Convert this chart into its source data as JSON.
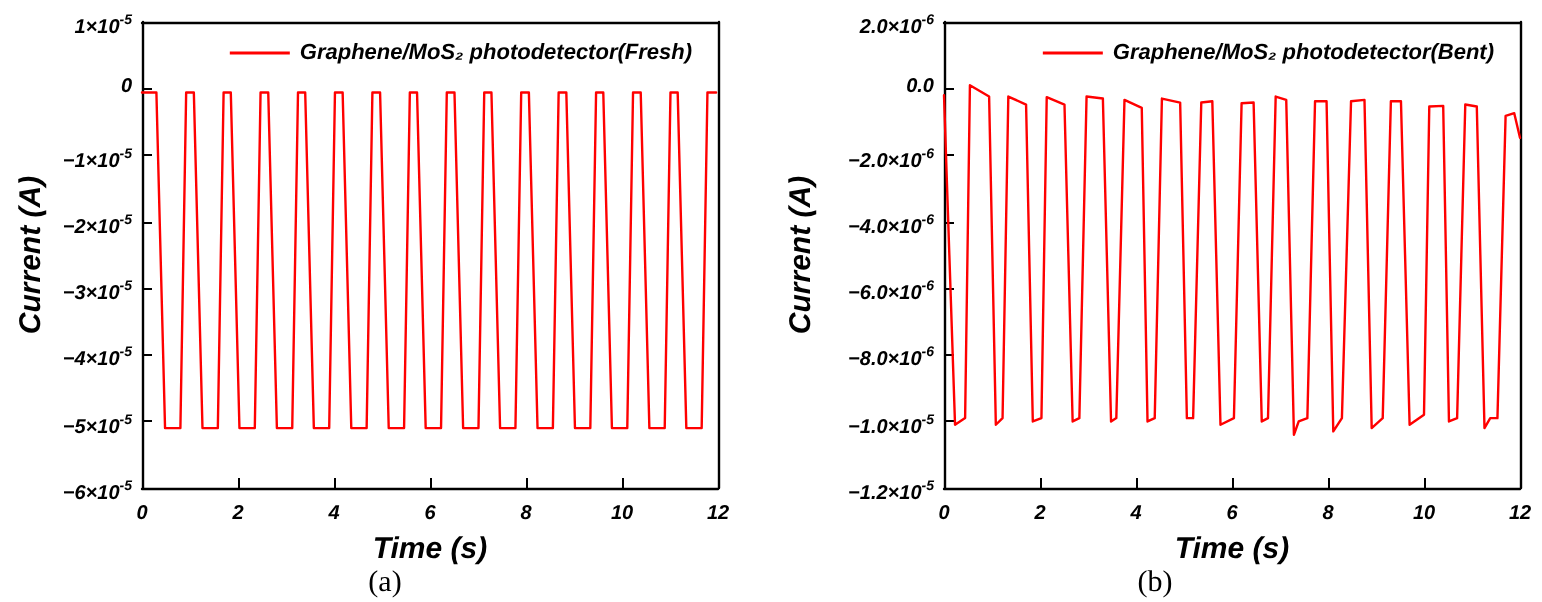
{
  "chart_data": [
    {
      "type": "line",
      "xlabel": "Time (s)",
      "ylabel": "Current (A)",
      "xlim": [
        0,
        12
      ],
      "xticks": [
        0,
        2,
        4,
        6,
        8,
        10,
        12
      ],
      "ylim": [
        -6e-05,
        1e-05
      ],
      "yticks": [
        {
          "value": -6e-05,
          "label": "−6×10$^{-5}$"
        },
        {
          "value": -5e-05,
          "label": "−5×10$^{-5}$"
        },
        {
          "value": -4e-05,
          "label": "−4×10$^{-5}$"
        },
        {
          "value": -3e-05,
          "label": "−3×10$^{-5}$"
        },
        {
          "value": -2e-05,
          "label": "−2×10$^{-5}$"
        },
        {
          "value": -1e-05,
          "label": "−1×10$^{-5}$"
        },
        0,
        {
          "value": 1e-05,
          "label": "1×10$^{-5}$"
        }
      ],
      "grid": false,
      "legend": "top right",
      "line_style": "solid",
      "marker": "none",
      "annotations": [
        "(a)"
      ],
      "series": [
        {
          "name": "Graphene/MoS₂ photodetector(Fresh)",
          "color": "#ff0000",
          "x": [
            0,
            0.3,
            0.48,
            0.8,
            0.92,
            1.08,
            1.26,
            1.58,
            1.7,
            1.85,
            2.03,
            2.35,
            2.47,
            2.63,
            2.81,
            3.13,
            3.25,
            3.4,
            3.58,
            3.9,
            4.02,
            4.18,
            4.36,
            4.68,
            4.8,
            4.96,
            5.14,
            5.46,
            5.58,
            5.73,
            5.91,
            6.23,
            6.35,
            6.51,
            6.69,
            7.01,
            7.13,
            7.28,
            7.46,
            7.78,
            7.9,
            8.06,
            8.24,
            8.56,
            8.68,
            8.84,
            9.02,
            9.34,
            9.46,
            9.61,
            9.79,
            10.11,
            10.23,
            10.39,
            10.57,
            10.89,
            11.01,
            11.16,
            11.34,
            11.66,
            11.78,
            11.96
          ],
          "values": [
            -6e-07,
            -6e-07,
            -5.1e-05,
            -5.1e-05,
            -6e-07,
            -6e-07,
            -5.1e-05,
            -5.1e-05,
            -6e-07,
            -6e-07,
            -5.1e-05,
            -5.1e-05,
            -6e-07,
            -6e-07,
            -5.1e-05,
            -5.1e-05,
            -6e-07,
            -6e-07,
            -5.1e-05,
            -5.1e-05,
            -6e-07,
            -6e-07,
            -5.1e-05,
            -5.1e-05,
            -6e-07,
            -6e-07,
            -5.1e-05,
            -5.1e-05,
            -6e-07,
            -6e-07,
            -5.1e-05,
            -5.1e-05,
            -6e-07,
            -6e-07,
            -5.1e-05,
            -5.1e-05,
            -6e-07,
            -6e-07,
            -5.1e-05,
            -5.1e-05,
            -6e-07,
            -6e-07,
            -5.1e-05,
            -5.1e-05,
            -6e-07,
            -6e-07,
            -5.1e-05,
            -5.1e-05,
            -6e-07,
            -6e-07,
            -5.1e-05,
            -5.1e-05,
            -6e-07,
            -6e-07,
            -5.1e-05,
            -5.1e-05,
            -6e-07,
            -6e-07,
            -5.1e-05,
            -5.1e-05,
            -6e-07,
            -6e-07
          ]
        }
      ]
    },
    {
      "type": "line",
      "xlabel": "Time (s)",
      "ylabel": "Current (A)",
      "xlim": [
        0,
        12
      ],
      "xticks": [
        0,
        2,
        4,
        6,
        8,
        10,
        12
      ],
      "ylim": [
        -1.2e-05,
        2e-06
      ],
      "yticks": [
        {
          "value": -1.2e-05,
          "label": "−1.2×10$^{-5}$"
        },
        {
          "value": -1e-05,
          "label": "−1.0×10$^{-5}$"
        },
        {
          "value": -8e-06,
          "label": "−8.0×10$^{-6}$"
        },
        {
          "value": -6e-06,
          "label": "−6.0×10$^{-6}$"
        },
        {
          "value": -4e-06,
          "label": "−4.0×10$^{-6}$"
        },
        {
          "value": -2e-06,
          "label": "−2.0×10$^{-6}$"
        },
        {
          "value": 0,
          "label": "0.0"
        },
        {
          "value": 2e-06,
          "label": "2.0×10$^{-6}$"
        }
      ],
      "grid": false,
      "legend": "top right",
      "line_style": "solid",
      "marker": "none",
      "annotations": [
        "(b)"
      ],
      "series": [
        {
          "name": "Graphene/MoS₂ photodetector(Bent)",
          "color": "#ff0000",
          "x": [
            0,
            0.23,
            0.44,
            0.54,
            0.94,
            1.08,
            1.22,
            1.34,
            1.71,
            1.85,
            2.03,
            2.14,
            2.51,
            2.68,
            2.82,
            2.97,
            3.31,
            3.48,
            3.59,
            3.76,
            4.12,
            4.24,
            4.39,
            4.54,
            4.92,
            5.06,
            5.19,
            5.36,
            5.59,
            5.76,
            6.04,
            6.2,
            6.45,
            6.62,
            6.75,
            6.91,
            7.13,
            7.29,
            7.39,
            7.57,
            7.73,
            7.97,
            8.11,
            8.29,
            8.48,
            8.76,
            8.91,
            9.14,
            9.31,
            9.52,
            9.7,
            10.0,
            10.11,
            10.4,
            10.52,
            10.69,
            10.86,
            11.1,
            11.26,
            11.38,
            11.53,
            11.7,
            11.88,
            12
          ],
          "values": [
            -2e-07,
            -1.01e-05,
            -9.9e-06,
            1e-07,
            -2.4e-07,
            -1.01e-05,
            -9.9e-06,
            -2.4e-07,
            -4.8e-07,
            -1e-05,
            -9.9e-06,
            -2.6e-07,
            -4.8e-07,
            -1e-05,
            -9.9e-06,
            -2.4e-07,
            -3e-07,
            -1e-05,
            -9.9e-06,
            -3.4e-07,
            -5.8e-07,
            -1e-05,
            -9.9e-06,
            -3e-07,
            -4.2e-07,
            -9.9e-06,
            -9.9e-06,
            -4.2e-07,
            -3.8e-07,
            -1.01e-05,
            -9.9e-06,
            -4.4e-07,
            -4.2e-07,
            -1e-05,
            -9.9e-06,
            -2.4e-07,
            -3.4e-07,
            -1.04e-05,
            -1e-05,
            -9.9e-06,
            -3.8e-07,
            -3.8e-07,
            -1.03e-05,
            -9.9e-06,
            -3.8e-07,
            -3.4e-07,
            -1.02e-05,
            -9.9e-06,
            -3.8e-07,
            -3.8e-07,
            -1.01e-05,
            -9.8e-06,
            -5.4e-07,
            -5.2e-07,
            -1e-05,
            -9.9e-06,
            -4.8e-07,
            -5.4e-07,
            -1.02e-05,
            -9.9e-06,
            -9.9e-06,
            -8.2e-07,
            -7.4e-07,
            -1.48e-06
          ]
        }
      ]
    }
  ]
}
